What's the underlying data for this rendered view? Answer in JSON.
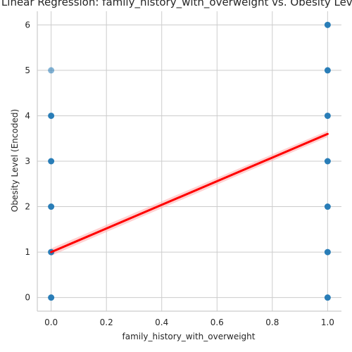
{
  "chart_data": {
    "type": "scatter",
    "title": "Linear Regression: family_history_with_overweight vs. Obesity Level",
    "xlabel": "family_history_with_overweight",
    "ylabel": "Obesity Level (Encoded)",
    "xlim": [
      -0.05,
      1.05
    ],
    "ylim": [
      -0.3,
      6.3
    ],
    "xticks": [
      "0.0",
      "0.2",
      "0.4",
      "0.6",
      "0.8",
      "1.0"
    ],
    "yticks": [
      "0",
      "1",
      "2",
      "3",
      "4",
      "5",
      "6"
    ],
    "grid": true,
    "legend": "none",
    "colors": {
      "points": "#1f77b4",
      "regression_line": "#ff0000",
      "confidence_band": "#ffb3b3",
      "grid": "#cccccc",
      "axis": "#cccccc"
    },
    "series": [
      {
        "points": [
          {
            "x": 0,
            "y": 0
          },
          {
            "x": 0,
            "y": 1
          },
          {
            "x": 0,
            "y": 2
          },
          {
            "x": 0,
            "y": 3
          },
          {
            "x": 0,
            "y": 4
          },
          {
            "x": 0,
            "y": 5
          },
          {
            "x": 1,
            "y": 0
          },
          {
            "x": 1,
            "y": 1
          },
          {
            "x": 1,
            "y": 2
          },
          {
            "x": 1,
            "y": 3
          },
          {
            "x": 1,
            "y": 4
          },
          {
            "x": 1,
            "y": 5
          },
          {
            "x": 1,
            "y": 6
          }
        ],
        "point_opacity": [
          0.95,
          0.95,
          0.95,
          0.95,
          0.95,
          0.55,
          0.95,
          0.95,
          0.95,
          0.95,
          0.95,
          0.95,
          0.95
        ]
      }
    ],
    "regression": {
      "x": [
        0,
        1
      ],
      "y": [
        1.0,
        3.6
      ],
      "ci_halfwidth": [
        0.08,
        0.07
      ]
    }
  }
}
